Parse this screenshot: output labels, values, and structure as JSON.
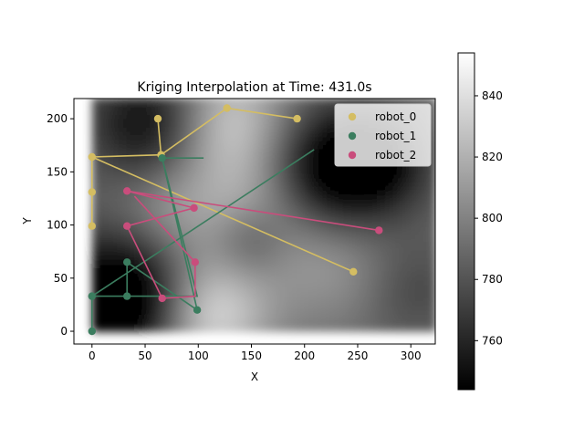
{
  "chart_data": {
    "type": "scatter",
    "title": "Kriging Interpolation at Time: 431.0s",
    "xlabel": "X",
    "ylabel": "Y",
    "xlim": [
      -17,
      323
    ],
    "ylim": [
      -12,
      219
    ],
    "xticks": [
      0,
      50,
      100,
      150,
      200,
      250,
      300
    ],
    "yticks": [
      0,
      50,
      100,
      150,
      200
    ],
    "grid": false,
    "legend_position": "top-right",
    "heatmap_extent": {
      "x": [
        0,
        323
      ],
      "y": [
        0,
        219
      ]
    },
    "colorbar": {
      "min": 744,
      "max": 854,
      "ticks": [
        760,
        780,
        800,
        820,
        840
      ],
      "colormap": "gray"
    },
    "field_blobs": [
      {
        "x": 30,
        "y": 30,
        "r": 45,
        "v": -65
      },
      {
        "x": 55,
        "y": 195,
        "r": 40,
        "v": -45
      },
      {
        "x": 215,
        "y": 150,
        "r": 45,
        "v": -50
      },
      {
        "x": 270,
        "y": 160,
        "r": 35,
        "v": -35
      },
      {
        "x": 150,
        "y": 85,
        "r": 25,
        "v": -25
      },
      {
        "x": 130,
        "y": 195,
        "r": 45,
        "v": 45
      },
      {
        "x": 110,
        "y": 15,
        "r": 40,
        "v": 50
      },
      {
        "x": 160,
        "y": 110,
        "r": 40,
        "v": 30
      },
      {
        "x": 70,
        "y": 115,
        "r": 35,
        "v": 20
      },
      {
        "x": 230,
        "y": 65,
        "r": 40,
        "v": 20
      },
      {
        "x": 300,
        "y": 40,
        "r": 35,
        "v": -15
      }
    ],
    "field_base": 790,
    "series": [
      {
        "name": "robot_0",
        "color": "#d4bd62",
        "path": [
          [
            246,
            56
          ],
          [
            0,
            164
          ],
          [
            0,
            131
          ],
          [
            0,
            99
          ],
          [
            0,
            164
          ],
          [
            65,
            166
          ],
          [
            62,
            200
          ],
          [
            65,
            166
          ],
          [
            127,
            210
          ],
          [
            193,
            200
          ]
        ],
        "points": [
          [
            246,
            56
          ],
          [
            0,
            164
          ],
          [
            0,
            131
          ],
          [
            0,
            99
          ],
          [
            65,
            166
          ],
          [
            62,
            200
          ],
          [
            127,
            210
          ],
          [
            193,
            200
          ]
        ]
      },
      {
        "name": "robot_1",
        "color": "#3b7d5f",
        "path": [
          [
            0,
            0
          ],
          [
            0,
            33
          ],
          [
            33,
            33
          ],
          [
            33,
            65
          ],
          [
            99,
            20
          ],
          [
            66,
            163
          ],
          [
            105,
            163
          ],
          [
            66,
            163
          ],
          [
            99,
            33
          ],
          [
            0,
            33
          ],
          [
            209,
            171
          ]
        ],
        "points": [
          [
            0,
            0
          ],
          [
            0,
            33
          ],
          [
            33,
            33
          ],
          [
            33,
            65
          ],
          [
            99,
            20
          ],
          [
            66,
            163
          ]
        ]
      },
      {
        "name": "robot_2",
        "color": "#c94d7c",
        "path": [
          [
            270,
            95
          ],
          [
            33,
            132
          ],
          [
            96,
            116
          ],
          [
            33,
            99
          ],
          [
            66,
            31
          ],
          [
            97,
            33
          ],
          [
            97,
            65
          ],
          [
            40,
            127
          ]
        ],
        "points": [
          [
            270,
            95
          ],
          [
            33,
            132
          ],
          [
            96,
            116
          ],
          [
            33,
            99
          ],
          [
            66,
            31
          ],
          [
            97,
            65
          ]
        ]
      }
    ]
  }
}
